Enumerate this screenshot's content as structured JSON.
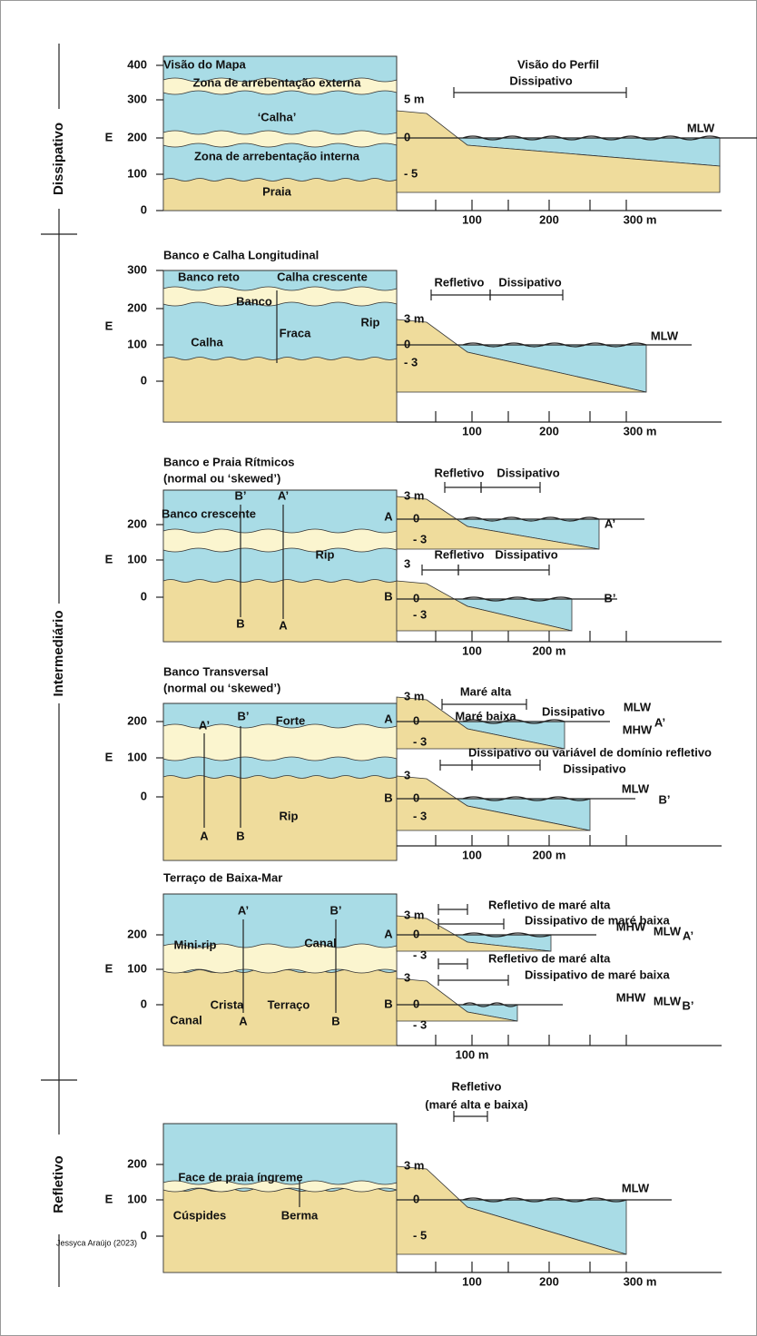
{
  "side_labels": [
    "Dissipativo",
    "Intermediário",
    "Refletivo"
  ],
  "credit": "Jessyca Araújo (2023)",
  "panels": [
    {
      "title": "Visão do Mapa",
      "profile_title": "Visão do Perfil",
      "axis": "E",
      "y_axis": [
        "400",
        "300",
        "200",
        "100",
        "0"
      ],
      "map_labels": [
        "Zona de arrebentação externa",
        "‘Calha’",
        "Zona de arrebentação interna",
        "Praia"
      ],
      "profile_labels": [
        "5 m",
        "0",
        "- 5",
        "Dissipativo",
        "MLW"
      ],
      "x_axis": [
        "100",
        "200",
        "300 m"
      ]
    },
    {
      "title": "Banco e Calha Longitudinal",
      "axis": "E",
      "y_axis": [
        "300",
        "200",
        "100",
        "0"
      ],
      "map_labels": [
        "Banco reto",
        "Calha crescente",
        "Banco",
        "Calha",
        "Fraca",
        "Rip"
      ],
      "profile_labels": [
        "3 m",
        "0",
        "- 3",
        "Refletivo",
        "Dissipativo",
        "MLW"
      ],
      "x_axis": [
        "100",
        "200",
        "300 m"
      ]
    },
    {
      "title": "Banco e Praia Rítmicos",
      "subtitle": "(normal ou ‘skewed’)",
      "axis": "E",
      "y_axis": [
        "200",
        "100",
        "0"
      ],
      "map_labels": [
        "B’",
        "A’",
        "Banco crescente",
        "Rip",
        "B",
        "A",
        "A",
        "B"
      ],
      "profile_labels": [
        "3 m",
        "0",
        "- 3",
        "Refletivo",
        "Dissipativo",
        "A’",
        "3",
        "Refletivo",
        "Dissipativo",
        "0",
        "- 3",
        "B’"
      ],
      "x_axis": [
        "100",
        "200 m"
      ]
    },
    {
      "title": "Banco Transversal",
      "subtitle": "(normal ou ‘skewed’)",
      "axis": "E",
      "y_axis": [
        "200",
        "100",
        "0"
      ],
      "map_labels": [
        "A’",
        "B’",
        "Forte",
        "Rip",
        "A",
        "B",
        "A",
        "B"
      ],
      "profile_labels": [
        "Maré alta",
        "Dissipativo",
        "Maré baixa",
        "3 m",
        "MLW",
        "0",
        "MHW",
        "A’",
        "- 3",
        "Dissipativo ou variável de domínio refletivo",
        "3",
        "Dissipativo",
        "MLW",
        "0",
        "B’",
        "- 3"
      ],
      "x_axis": [
        "100",
        "200 m"
      ]
    },
    {
      "title": "Terraço de Baixa-Mar",
      "axis": "E",
      "y_axis": [
        "200",
        "100",
        "0"
      ],
      "map_labels": [
        "A’",
        "B’",
        "Mini-rip",
        "Canal",
        "Canal",
        "Crista",
        "A",
        "Terraço",
        "B",
        "A",
        "B"
      ],
      "profile_labels": [
        "Refletivo de maré alta",
        "3 m",
        "Dissipativo de maré baixa",
        "MHW",
        "MLW",
        "A’",
        "0",
        "- 3",
        "Refletivo de maré alta",
        "3",
        "Dissipativo de maré baixa",
        "MHW",
        "MLW",
        "B’",
        "0",
        "- 3"
      ],
      "x_axis": [
        "100 m"
      ]
    },
    {
      "title": "Refletivo",
      "subtitle": "(maré alta e baixa)",
      "axis": "E",
      "y_axis": [
        "200",
        "100",
        "0"
      ],
      "map_labels": [
        "Face de praia íngreme",
        "Cúspides",
        "Berma"
      ],
      "profile_labels": [
        "3 m",
        "0",
        "- 5",
        "MLW"
      ],
      "x_axis": [
        "100",
        "200",
        "300 m"
      ]
    }
  ]
}
